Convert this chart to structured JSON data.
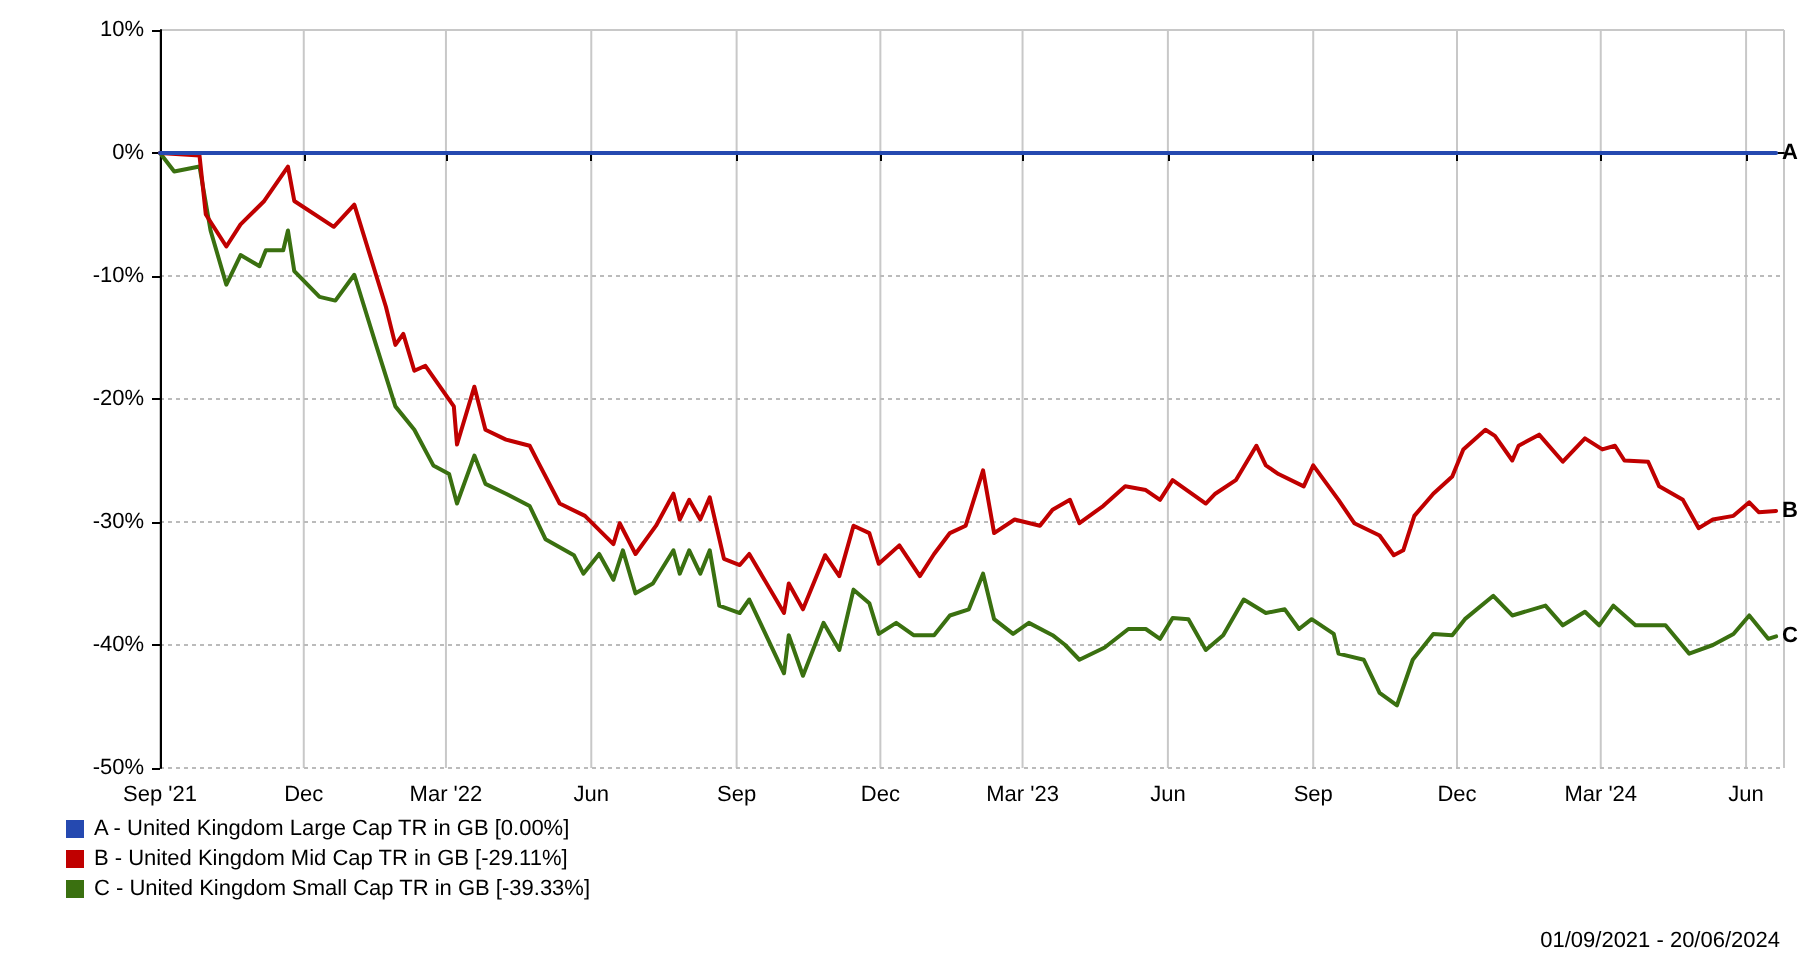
{
  "chart_data": {
    "type": "line",
    "xlim": [
      "2021-09-01",
      "2024-06-25"
    ],
    "xticks": [
      {
        "value": "2021-09-01",
        "label": "Sep '21"
      },
      {
        "value": "2021-12-01",
        "label": "Dec"
      },
      {
        "value": "2022-03-01",
        "label": "Mar '22"
      },
      {
        "value": "2022-06-01",
        "label": "Jun"
      },
      {
        "value": "2022-09-01",
        "label": "Sep"
      },
      {
        "value": "2022-12-01",
        "label": "Dec"
      },
      {
        "value": "2023-03-01",
        "label": "Mar '23"
      },
      {
        "value": "2023-06-01",
        "label": "Jun"
      },
      {
        "value": "2023-09-01",
        "label": "Sep"
      },
      {
        "value": "2023-12-01",
        "label": "Dec"
      },
      {
        "value": "2024-03-01",
        "label": "Mar '24"
      },
      {
        "value": "2024-06-01",
        "label": "Jun"
      }
    ],
    "ylim": [
      -50,
      10
    ],
    "yticks": [
      {
        "value": -50,
        "label": "-50%"
      },
      {
        "value": -40,
        "label": "-40%"
      },
      {
        "value": -30,
        "label": "-30%"
      },
      {
        "value": -20,
        "label": "-20%"
      },
      {
        "value": -10,
        "label": "-10%"
      },
      {
        "value": 0,
        "label": "0%"
      },
      {
        "value": 10,
        "label": "10%"
      }
    ],
    "grid": true,
    "legend": "bottom left",
    "marker": "none",
    "line_style": "solid",
    "series": [
      {
        "name": "A - United Kingdom Large Cap TR in GB [0.00%]",
        "color": "#2549b0",
        "x": [
          "2021-09-01",
          "2024-06-20"
        ],
        "values": [
          0,
          0
        ]
      },
      {
        "name": "B - United Kingdom Mid Cap TR in GB [-29.11%]",
        "color": "#c00000",
        "x": [
          "2021-09-01",
          "2021-09-26",
          "2021-09-30",
          "2021-10-13",
          "2021-10-22",
          "2021-11-06",
          "2021-11-21",
          "2021-11-25",
          "2021-12-20",
          "2022-01-02",
          "2022-01-22",
          "2022-01-28",
          "2022-02-02",
          "2022-02-09",
          "2022-02-16",
          "2022-03-06",
          "2022-03-08",
          "2022-03-19",
          "2022-03-26",
          "2022-04-08",
          "2022-04-23",
          "2022-04-29",
          "2022-05-12",
          "2022-05-28",
          "2022-06-15",
          "2022-06-19",
          "2022-06-29",
          "2022-07-12",
          "2022-07-23",
          "2022-07-27",
          "2022-08-02",
          "2022-08-09",
          "2022-08-15",
          "2022-08-24",
          "2022-09-03",
          "2022-09-09",
          "2022-10-01",
          "2022-10-04",
          "2022-10-13",
          "2022-10-27",
          "2022-11-05",
          "2022-11-14",
          "2022-11-24",
          "2022-11-30",
          "2022-12-13",
          "2022-12-26",
          "2023-01-04",
          "2023-01-14",
          "2023-01-24",
          "2023-02-04",
          "2023-02-11",
          "2023-02-24",
          "2023-03-12",
          "2023-03-20",
          "2023-03-31",
          "2023-04-06",
          "2023-04-21",
          "2023-05-05",
          "2023-05-18",
          "2023-05-27",
          "2023-06-04",
          "2023-06-25",
          "2023-07-01",
          "2023-07-14",
          "2023-07-27",
          "2023-08-02",
          "2023-08-10",
          "2023-08-26",
          "2023-09-01",
          "2023-09-17",
          "2023-09-27",
          "2023-10-13",
          "2023-10-22",
          "2023-10-28",
          "2023-11-04",
          "2023-11-16",
          "2023-11-28",
          "2023-12-05",
          "2023-12-19",
          "2023-12-25",
          "2024-01-05",
          "2024-01-09",
          "2024-01-22",
          "2024-02-06",
          "2024-02-20",
          "2024-03-02",
          "2024-03-10",
          "2024-03-16",
          "2024-03-31",
          "2024-04-07",
          "2024-04-22",
          "2024-05-02",
          "2024-05-11",
          "2024-05-24",
          "2024-06-03",
          "2024-06-09",
          "2024-06-20"
        ],
        "values": [
          0,
          -0.2,
          -5,
          -7.6,
          -5.8,
          -3.9,
          -1.1,
          -3.9,
          -6,
          -4.2,
          -12.5,
          -15.6,
          -14.7,
          -17.7,
          -17.3,
          -20.6,
          -23.7,
          -19,
          -22.5,
          -23.3,
          -23.8,
          -25.3,
          -28.5,
          -29.5,
          -31.8,
          -30.1,
          -32.6,
          -30.3,
          -27.7,
          -29.8,
          -28.2,
          -29.8,
          -28,
          -33,
          -33.5,
          -32.6,
          -37.4,
          -35,
          -37.1,
          -32.7,
          -34.4,
          -30.3,
          -30.9,
          -33.4,
          -31.9,
          -34.4,
          -32.6,
          -30.9,
          -30.3,
          -25.8,
          -30.9,
          -29.8,
          -30.3,
          -29,
          -28.2,
          -30.1,
          -28.7,
          -27.1,
          -27.4,
          -28.2,
          -26.6,
          -28.5,
          -27.7,
          -26.6,
          -23.8,
          -25.4,
          -26.1,
          -27.1,
          -25.4,
          -28.2,
          -30.1,
          -31.1,
          -32.7,
          -32.3,
          -29.5,
          -27.7,
          -26.3,
          -24.1,
          -22.5,
          -23,
          -25,
          -23.8,
          -22.9,
          -25.1,
          -23.2,
          -24.1,
          -23.8,
          -25,
          -25.1,
          -27.1,
          -28.2,
          -30.5,
          -29.8,
          -29.5,
          -28.4,
          -29.2,
          -29.1
        ]
      },
      {
        "name": "C - United Kingdom Small Cap TR in GB [-39.33%]",
        "color": "#3a7010",
        "x": [
          "2021-09-01",
          "2021-09-10",
          "2021-09-26",
          "2021-10-03",
          "2021-10-13",
          "2021-10-22",
          "2021-11-03",
          "2021-11-07",
          "2021-11-18",
          "2021-11-21",
          "2021-11-25",
          "2021-12-11",
          "2021-12-21",
          "2022-01-02",
          "2022-01-16",
          "2022-01-28",
          "2022-02-09",
          "2022-02-21",
          "2022-03-03",
          "2022-03-08",
          "2022-03-19",
          "2022-03-26",
          "2022-04-08",
          "2022-04-23",
          "2022-05-03",
          "2022-05-21",
          "2022-05-27",
          "2022-06-06",
          "2022-06-15",
          "2022-06-21",
          "2022-06-29",
          "2022-07-10",
          "2022-07-23",
          "2022-07-27",
          "2022-08-02",
          "2022-08-09",
          "2022-08-15",
          "2022-08-21",
          "2022-09-03",
          "2022-09-09",
          "2022-10-01",
          "2022-10-04",
          "2022-10-13",
          "2022-10-26",
          "2022-11-05",
          "2022-11-14",
          "2022-11-24",
          "2022-11-30",
          "2022-12-11",
          "2022-12-22",
          "2023-01-04",
          "2023-01-14",
          "2023-01-26",
          "2023-02-04",
          "2023-02-11",
          "2023-02-23",
          "2023-03-05",
          "2023-03-20",
          "2023-03-28",
          "2023-04-06",
          "2023-04-22",
          "2023-05-07",
          "2023-05-18",
          "2023-05-27",
          "2023-06-04",
          "2023-06-14",
          "2023-06-25",
          "2023-07-06",
          "2023-07-19",
          "2023-08-02",
          "2023-08-14",
          "2023-08-23",
          "2023-08-31",
          "2023-09-14",
          "2023-09-17",
          "2023-10-03",
          "2023-10-13",
          "2023-10-24",
          "2023-11-03",
          "2023-11-16",
          "2023-11-28",
          "2023-12-06",
          "2023-12-24",
          "2024-01-05",
          "2024-01-26",
          "2024-02-06",
          "2024-02-20",
          "2024-02-29",
          "2024-03-09",
          "2024-03-23",
          "2024-04-11",
          "2024-04-26",
          "2024-05-11",
          "2024-05-24",
          "2024-06-03",
          "2024-06-15",
          "2024-06-20"
        ],
        "values": [
          0,
          -1.5,
          -1.1,
          -6.3,
          -10.7,
          -8.3,
          -9.2,
          -7.9,
          -7.9,
          -6.3,
          -9.6,
          -11.7,
          -12,
          -9.9,
          -15.7,
          -20.6,
          -22.5,
          -25.4,
          -26.1,
          -28.5,
          -24.6,
          -26.9,
          -27.7,
          -28.7,
          -31.4,
          -32.7,
          -34.2,
          -32.6,
          -34.7,
          -32.3,
          -35.8,
          -35,
          -32.3,
          -34.2,
          -32.3,
          -34.2,
          -32.3,
          -36.8,
          -37.4,
          -36.3,
          -42.3,
          -39.2,
          -42.5,
          -38.2,
          -40.4,
          -35.5,
          -36.6,
          -39.1,
          -38.2,
          -39.2,
          -39.2,
          -37.6,
          -37.1,
          -34.2,
          -37.9,
          -39.1,
          -38.2,
          -39.2,
          -40,
          -41.2,
          -40.2,
          -38.7,
          -38.7,
          -39.5,
          -37.8,
          -37.9,
          -40.4,
          -39.2,
          -36.3,
          -37.4,
          -37.1,
          -38.7,
          -37.9,
          -39.1,
          -40.7,
          -41.2,
          -43.9,
          -44.9,
          -41.2,
          -39.1,
          -39.2,
          -37.9,
          -36,
          -37.6,
          -36.8,
          -38.4,
          -37.3,
          -38.4,
          -36.8,
          -38.4,
          -38.4,
          -40.7,
          -40,
          -39.1,
          -37.6,
          -39.5,
          -39.3
        ]
      }
    ],
    "annotations": [
      {
        "text": "A",
        "x": "2024-06-20",
        "y": 0
      },
      {
        "text": "B",
        "x": "2024-06-20",
        "y": -29.1
      },
      {
        "text": "C",
        "x": "2024-06-20",
        "y": -39.3
      },
      "01/09/2021 - 20/06/2024"
    ]
  }
}
